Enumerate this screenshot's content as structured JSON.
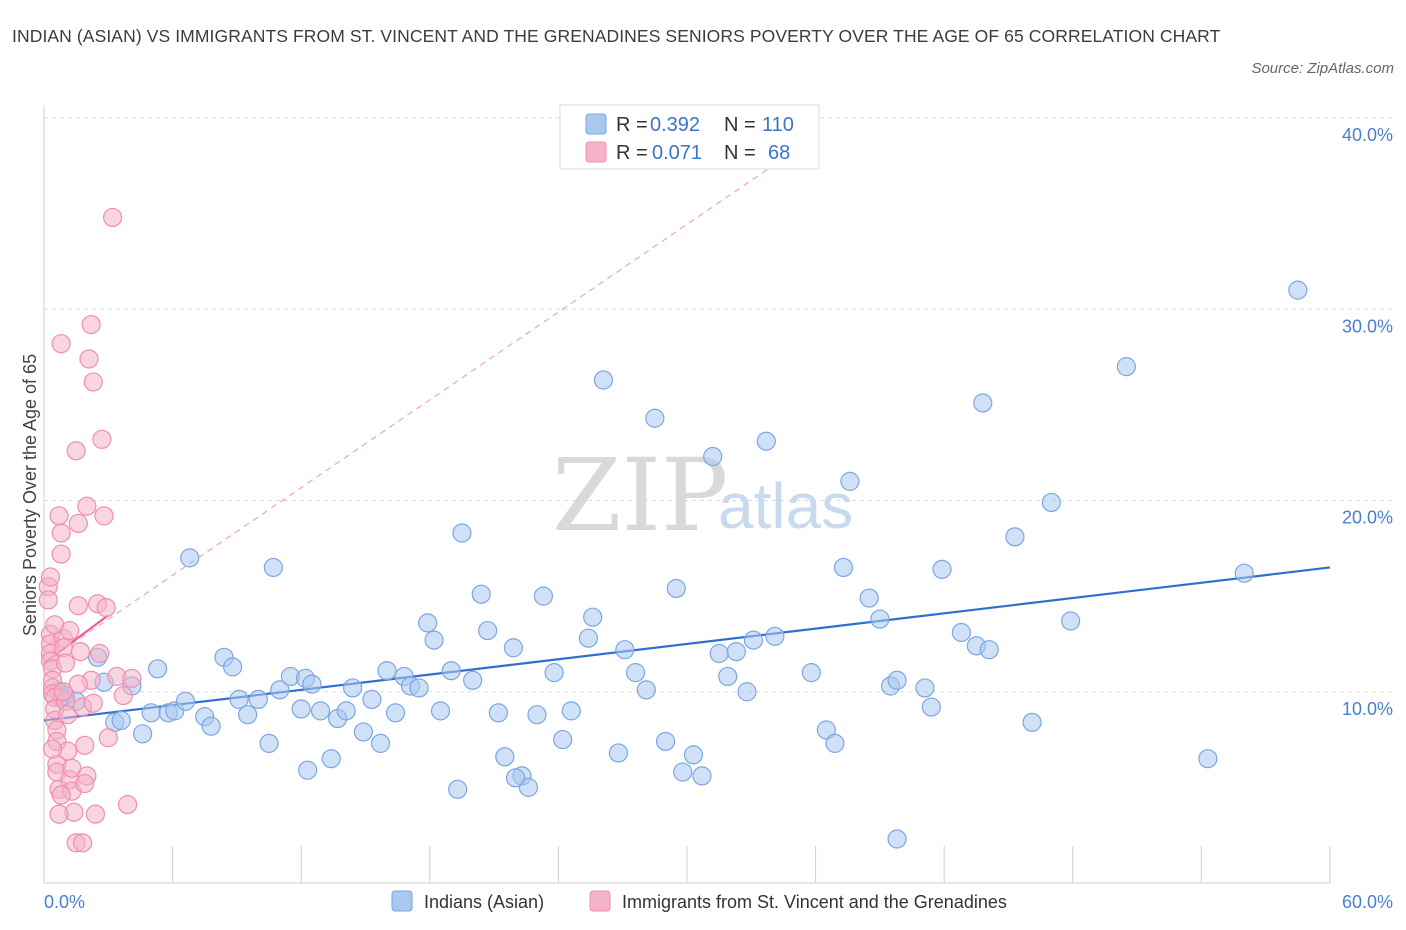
{
  "title": "INDIAN (ASIAN) VS IMMIGRANTS FROM ST. VINCENT AND THE GRENADINES SENIORS POVERTY OVER THE AGE OF 65 CORRELATION CHART",
  "source": "Source: ZipAtlas.com",
  "watermark": {
    "zip": "ZIP",
    "atlas": "atlas"
  },
  "legend": {
    "rows": [
      {
        "r_label": "R =",
        "r_value": "0.392",
        "n_label": "N =",
        "n_value": "110",
        "color": "#a9c8f0"
      },
      {
        "r_label": "R =",
        "r_value": "0.071",
        "n_label": "N =",
        "n_value": "68",
        "color": "#f4b3c8"
      }
    ]
  },
  "chart_data": {
    "type": "scatter",
    "title": "INDIAN (ASIAN) VS IMMIGRANTS FROM ST. VINCENT AND THE GRENADINES SENIORS POVERTY OVER THE AGE OF 65 CORRELATION CHART",
    "xlabel": "",
    "ylabel": "Seniors Poverty Over the Age of 65",
    "xlim": [
      0,
      60
    ],
    "ylim": [
      0,
      40
    ],
    "x_tick_labels": [
      "0.0%",
      "60.0%"
    ],
    "y_tick_labels": [
      "10.0%",
      "20.0%",
      "30.0%",
      "40.0%"
    ],
    "y_ticks": [
      10,
      20,
      30,
      40
    ],
    "grid": true,
    "legend_placement": "top-center",
    "series": [
      {
        "name": "Indians (Asian)",
        "color": "#a9c8f0",
        "stroke": "#7aa7e0",
        "trend": {
          "x": [
            0,
            60
          ],
          "y": [
            8.5,
            16.5
          ],
          "color": "#2f6fcf"
        },
        "points": [
          [
            0.7,
            10
          ],
          [
            0.8,
            9.7
          ],
          [
            1,
            9.8
          ],
          [
            1.5,
            9.5
          ],
          [
            2.5,
            11.8
          ],
          [
            2.8,
            10.5
          ],
          [
            3.3,
            8.4
          ],
          [
            3.6,
            8.5
          ],
          [
            4.1,
            10.3
          ],
          [
            4.6,
            7.8
          ],
          [
            5,
            8.9
          ],
          [
            5.3,
            11.2
          ],
          [
            5.8,
            8.9
          ],
          [
            6.1,
            9
          ],
          [
            6.6,
            9.5
          ],
          [
            6.8,
            17
          ],
          [
            7.5,
            8.7
          ],
          [
            7.8,
            8.2
          ],
          [
            8.4,
            11.8
          ],
          [
            8.8,
            11.3
          ],
          [
            9.1,
            9.6
          ],
          [
            9.5,
            8.8
          ],
          [
            10,
            9.6
          ],
          [
            10.5,
            7.3
          ],
          [
            10.7,
            16.5
          ],
          [
            11,
            10.1
          ],
          [
            11.5,
            10.8
          ],
          [
            12,
            9.1
          ],
          [
            12.2,
            10.7
          ],
          [
            12.5,
            10.4
          ],
          [
            12.9,
            9
          ],
          [
            13.4,
            6.5
          ],
          [
            13.7,
            8.6
          ],
          [
            14.1,
            9
          ],
          [
            14.4,
            10.2
          ],
          [
            14.9,
            7.9
          ],
          [
            15.3,
            9.6
          ],
          [
            15.7,
            7.3
          ],
          [
            16,
            11.1
          ],
          [
            16.4,
            8.9
          ],
          [
            16.8,
            10.8
          ],
          [
            17.1,
            10.3
          ],
          [
            17.5,
            10.2
          ],
          [
            17.9,
            13.6
          ],
          [
            18.2,
            12.7
          ],
          [
            18.5,
            9
          ],
          [
            19,
            11.1
          ],
          [
            19.3,
            4.9
          ],
          [
            19.5,
            18.3
          ],
          [
            20,
            10.6
          ],
          [
            20.4,
            15.1
          ],
          [
            20.7,
            13.2
          ],
          [
            21.2,
            8.9
          ],
          [
            21.5,
            6.6
          ],
          [
            21.9,
            12.3
          ],
          [
            22.3,
            5.6
          ],
          [
            22.6,
            5
          ],
          [
            23,
            8.8
          ],
          [
            23.3,
            15
          ],
          [
            23.8,
            11
          ],
          [
            24.2,
            7.5
          ],
          [
            24.6,
            9
          ],
          [
            25.4,
            12.8
          ],
          [
            25.6,
            13.9
          ],
          [
            26.1,
            26.3
          ],
          [
            26.8,
            6.8
          ],
          [
            27.1,
            12.2
          ],
          [
            27.6,
            11
          ],
          [
            28.1,
            10.1
          ],
          [
            28.5,
            24.3
          ],
          [
            29,
            7.4
          ],
          [
            29.5,
            15.4
          ],
          [
            29.8,
            5.8
          ],
          [
            30.3,
            6.7
          ],
          [
            30.7,
            5.6
          ],
          [
            31.2,
            22.3
          ],
          [
            31.5,
            12
          ],
          [
            31.9,
            10.8
          ],
          [
            32.3,
            12.1
          ],
          [
            32.8,
            10
          ],
          [
            33.1,
            12.7
          ],
          [
            33.7,
            23.1
          ],
          [
            34.1,
            12.9
          ],
          [
            35.8,
            11
          ],
          [
            36.5,
            8
          ],
          [
            36.9,
            7.3
          ],
          [
            37.3,
            16.5
          ],
          [
            37.6,
            21
          ],
          [
            38.5,
            14.9
          ],
          [
            39,
            13.8
          ],
          [
            39.5,
            10.3
          ],
          [
            39.8,
            10.6
          ],
          [
            41.1,
            10.2
          ],
          [
            41.4,
            9.2
          ],
          [
            41.9,
            16.4
          ],
          [
            42.8,
            13.1
          ],
          [
            43.5,
            12.4
          ],
          [
            43.8,
            25.1
          ],
          [
            44.1,
            12.2
          ],
          [
            45.3,
            18.1
          ],
          [
            46.1,
            8.4
          ],
          [
            47,
            19.9
          ],
          [
            47.9,
            13.7
          ],
          [
            50.5,
            27
          ],
          [
            54.3,
            6.5
          ],
          [
            56,
            16.2
          ],
          [
            58.5,
            31
          ],
          [
            39.8,
            2.3
          ],
          [
            22,
            5.5
          ],
          [
            12.3,
            5.9
          ]
        ]
      },
      {
        "name": "Immigrants from St. Vincent and the Grenadines",
        "color": "#f4b3c8",
        "stroke": "#ee8fae",
        "trend": {
          "x": [
            0,
            3
          ],
          "y": [
            11.5,
            14
          ],
          "color": "#e8609a",
          "extended": {
            "x": [
              0,
              34
            ],
            "y": [
              11.5,
              37.5
            ]
          }
        },
        "points": [
          [
            0.2,
            15.5
          ],
          [
            0.2,
            14.8
          ],
          [
            0.3,
            13
          ],
          [
            0.3,
            12.5
          ],
          [
            0.3,
            12
          ],
          [
            0.3,
            11.6
          ],
          [
            0.4,
            11.2
          ],
          [
            0.4,
            10.6
          ],
          [
            0.4,
            10.2
          ],
          [
            0.4,
            9.9
          ],
          [
            0.5,
            9.7
          ],
          [
            0.5,
            9.1
          ],
          [
            0.5,
            8.5
          ],
          [
            0.6,
            8
          ],
          [
            0.6,
            7.4
          ],
          [
            0.6,
            6.2
          ],
          [
            0.6,
            5.8
          ],
          [
            0.7,
            4.9
          ],
          [
            0.7,
            19.2
          ],
          [
            0.8,
            18.3
          ],
          [
            0.8,
            17.2
          ],
          [
            0.8,
            28.2
          ],
          [
            0.9,
            12.8
          ],
          [
            0.9,
            12.3
          ],
          [
            1,
            11.5
          ],
          [
            1,
            9.5
          ],
          [
            1.1,
            8.8
          ],
          [
            1.2,
            5.4
          ],
          [
            1.3,
            4.8
          ],
          [
            1.3,
            6
          ],
          [
            1.4,
            3.7
          ],
          [
            1.5,
            2.1
          ],
          [
            1.5,
            22.6
          ],
          [
            1.6,
            18.8
          ],
          [
            1.6,
            14.5
          ],
          [
            1.7,
            12.1
          ],
          [
            1.8,
            9.2
          ],
          [
            1.9,
            7.2
          ],
          [
            2,
            5.6
          ],
          [
            2,
            19.7
          ],
          [
            2.1,
            27.4
          ],
          [
            2.2,
            29.2
          ],
          [
            2.3,
            26.2
          ],
          [
            2.4,
            3.6
          ],
          [
            2.5,
            14.6
          ],
          [
            2.6,
            12
          ],
          [
            2.7,
            23.2
          ],
          [
            2.8,
            19.2
          ],
          [
            2.9,
            14.4
          ],
          [
            3,
            7.6
          ],
          [
            3.2,
            34.8
          ],
          [
            3.4,
            10.8
          ],
          [
            3.7,
            9.8
          ],
          [
            3.9,
            4.1
          ],
          [
            4.1,
            10.7
          ],
          [
            0.5,
            13.5
          ],
          [
            0.9,
            10
          ],
          [
            1.1,
            6.9
          ],
          [
            1.8,
            2.1
          ],
          [
            0.7,
            3.6
          ],
          [
            2.2,
            10.6
          ],
          [
            0.4,
            7
          ],
          [
            1.2,
            13.2
          ],
          [
            1.6,
            10.4
          ],
          [
            0.3,
            16
          ],
          [
            0.8,
            4.6
          ],
          [
            1.9,
            5.2
          ],
          [
            2.3,
            9.4
          ]
        ]
      }
    ]
  },
  "bottom_legend": [
    {
      "label": "Indians (Asian)",
      "color": "#a9c8f0"
    },
    {
      "label": "Immigrants from St. Vincent and the Grenadines",
      "color": "#f4b3c8"
    }
  ]
}
